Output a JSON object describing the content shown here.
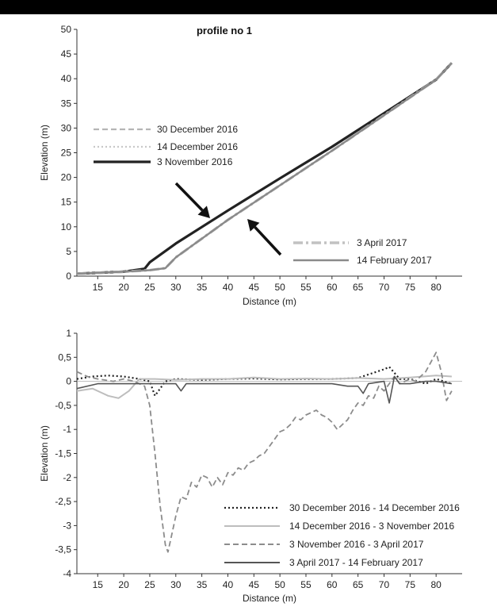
{
  "chart_data": [
    {
      "type": "line",
      "title": "profile no 1",
      "xlabel": "Distance (m)",
      "ylabel": "Elevation (m)",
      "xlim": [
        11,
        85
      ],
      "ylim": [
        0,
        50
      ],
      "xticks": [
        "15",
        "20",
        "25",
        "30",
        "35",
        "40",
        "45",
        "50",
        "55",
        "60",
        "65",
        "70",
        "75",
        "80"
      ],
      "yticks": [
        "0",
        "5",
        "10",
        "15",
        "20",
        "25",
        "30",
        "35",
        "40",
        "45",
        "50"
      ],
      "grid": false,
      "legend": [
        "left",
        "bottom-right"
      ],
      "series": [
        {
          "name": "30 December 2016",
          "color": "#b5b5b5",
          "style": "dashed",
          "x": [
            11,
            20,
            24,
            25,
            30,
            40,
            50,
            60,
            70,
            80,
            83
          ],
          "y": [
            0.5,
            0.9,
            1.5,
            2.8,
            6.6,
            13.3,
            19.8,
            26.2,
            33,
            39.8,
            43.2
          ]
        },
        {
          "name": "14 December 2016",
          "color": "#c8c8c8",
          "style": "dotted",
          "x": [
            11,
            20,
            24,
            25,
            30,
            40,
            50,
            60,
            70,
            80,
            83
          ],
          "y": [
            0.5,
            0.9,
            1.5,
            2.8,
            6.6,
            13.3,
            19.8,
            26.2,
            33,
            39.8,
            43.2
          ]
        },
        {
          "name": "3 November 2016",
          "color": "#222222",
          "style": "solid",
          "x": [
            11,
            20,
            24,
            25,
            30,
            40,
            50,
            60,
            70,
            80,
            83
          ],
          "y": [
            0.5,
            0.9,
            1.5,
            2.8,
            6.6,
            13.3,
            19.8,
            26.2,
            33,
            39.8,
            43.2
          ]
        },
        {
          "name": "3 April 2017",
          "color": "#c2c2c2",
          "style": "dashdot",
          "x": [
            11,
            20,
            25,
            28,
            30,
            40,
            50,
            60,
            70,
            80,
            83
          ],
          "y": [
            0.5,
            0.9,
            1.2,
            1.6,
            3.8,
            11.4,
            18.4,
            25.4,
            32.6,
            39.8,
            43.2
          ]
        },
        {
          "name": "14 February 2017",
          "color": "#8a8a8a",
          "style": "solid",
          "x": [
            11,
            20,
            25,
            28,
            30,
            40,
            50,
            60,
            70,
            80,
            83
          ],
          "y": [
            0.5,
            0.9,
            1.2,
            1.6,
            3.8,
            11.4,
            18.4,
            25.4,
            32.6,
            39.8,
            43.2
          ]
        }
      ]
    },
    {
      "type": "line",
      "title": "",
      "xlabel": "Distance (m)",
      "ylabel": "Elevation (m)",
      "xlim": [
        11,
        85
      ],
      "ylim": [
        -4,
        1
      ],
      "xticks": [
        "15",
        "20",
        "25",
        "30",
        "35",
        "40",
        "45",
        "50",
        "55",
        "60",
        "65",
        "70",
        "75",
        "80"
      ],
      "yticks": [
        "1",
        "0,5",
        "0",
        "-0,5",
        "-1",
        "-1,5",
        "-2",
        "-2,5",
        "-3",
        "-3,5",
        "-4"
      ],
      "grid": false,
      "legend": "bottom-right",
      "series": [
        {
          "name": "30 December 2016 - 14 December 2016",
          "color": "#222222",
          "style": "dotted",
          "x": [
            11,
            14,
            17,
            20,
            23,
            25,
            26,
            28,
            30,
            35,
            40,
            45,
            50,
            55,
            60,
            65,
            70,
            71,
            73,
            75,
            78,
            80,
            83
          ],
          "y": [
            0.05,
            0.1,
            0.12,
            0.1,
            0.05,
            0,
            -0.3,
            0,
            0.05,
            0.03,
            0.05,
            0.06,
            0.04,
            0.05,
            0.05,
            0.07,
            0.25,
            0.3,
            0.05,
            0.05,
            -0.05,
            0.05,
            -0.05
          ]
        },
        {
          "name": "14 December 2016 - 3 November 2016",
          "color": "#bdbdbd",
          "style": "solid",
          "x": [
            11,
            14,
            17,
            19,
            21,
            23,
            26,
            30,
            35,
            40,
            45,
            50,
            55,
            60,
            65,
            70,
            75,
            80,
            83
          ],
          "y": [
            -0.2,
            -0.15,
            -0.3,
            -0.35,
            -0.2,
            0.05,
            0.05,
            0.03,
            0.05,
            0.05,
            0.08,
            0.05,
            0.06,
            0.05,
            0.07,
            0.05,
            0.08,
            0.12,
            0.1
          ]
        },
        {
          "name": "3 November 2016 - 3 April 2017",
          "color": "#8c8c8c",
          "style": "dashed",
          "x": [
            11,
            13,
            15,
            18,
            20,
            22,
            24,
            25,
            26,
            27,
            28,
            28.5,
            29,
            30,
            31,
            32,
            33,
            34,
            35,
            36,
            37,
            38,
            39,
            40,
            41,
            42,
            43,
            44,
            45,
            46,
            47,
            48,
            49,
            50,
            51,
            52,
            53,
            54,
            55,
            56,
            57,
            58,
            59,
            60,
            61,
            62,
            63,
            64,
            65,
            66,
            67,
            68,
            69,
            70,
            71,
            72,
            73,
            74,
            75,
            76,
            77,
            78,
            79,
            80,
            81,
            82,
            83
          ],
          "y": [
            0.2,
            0.1,
            0.05,
            0,
            0.05,
            0,
            -0.1,
            -0.5,
            -1.5,
            -2.6,
            -3.4,
            -3.55,
            -3.3,
            -2.8,
            -2.4,
            -2.45,
            -2.1,
            -2.2,
            -1.95,
            -2.0,
            -2.2,
            -2.0,
            -2.15,
            -1.9,
            -1.95,
            -1.8,
            -1.85,
            -1.7,
            -1.65,
            -1.55,
            -1.5,
            -1.35,
            -1.2,
            -1.05,
            -1.0,
            -0.9,
            -0.75,
            -0.8,
            -0.7,
            -0.65,
            -0.6,
            -0.7,
            -0.75,
            -0.85,
            -1.0,
            -0.9,
            -0.8,
            -0.6,
            -0.45,
            -0.5,
            -0.3,
            -0.35,
            -0.1,
            -0.2,
            -0.05,
            0.1,
            -0.05,
            0.0,
            0.05,
            0.0,
            0.1,
            0.2,
            0.4,
            0.6,
            0.2,
            -0.4,
            -0.2
          ]
        },
        {
          "name": "3 April 2017 - 14 February 2017",
          "color": "#555555",
          "style": "solid",
          "x": [
            11,
            15,
            20,
            25,
            30,
            31,
            32,
            35,
            40,
            45,
            50,
            55,
            60,
            63,
            65,
            66,
            67,
            70,
            71,
            72,
            73,
            75,
            78,
            80,
            83
          ],
          "y": [
            -0.15,
            -0.05,
            -0.05,
            -0.05,
            -0.05,
            -0.2,
            -0.05,
            -0.05,
            -0.05,
            -0.05,
            -0.05,
            -0.05,
            -0.05,
            -0.1,
            -0.1,
            -0.25,
            -0.05,
            0.0,
            -0.45,
            0.1,
            -0.05,
            -0.05,
            0.0,
            0.0,
            -0.05
          ]
        }
      ]
    }
  ]
}
